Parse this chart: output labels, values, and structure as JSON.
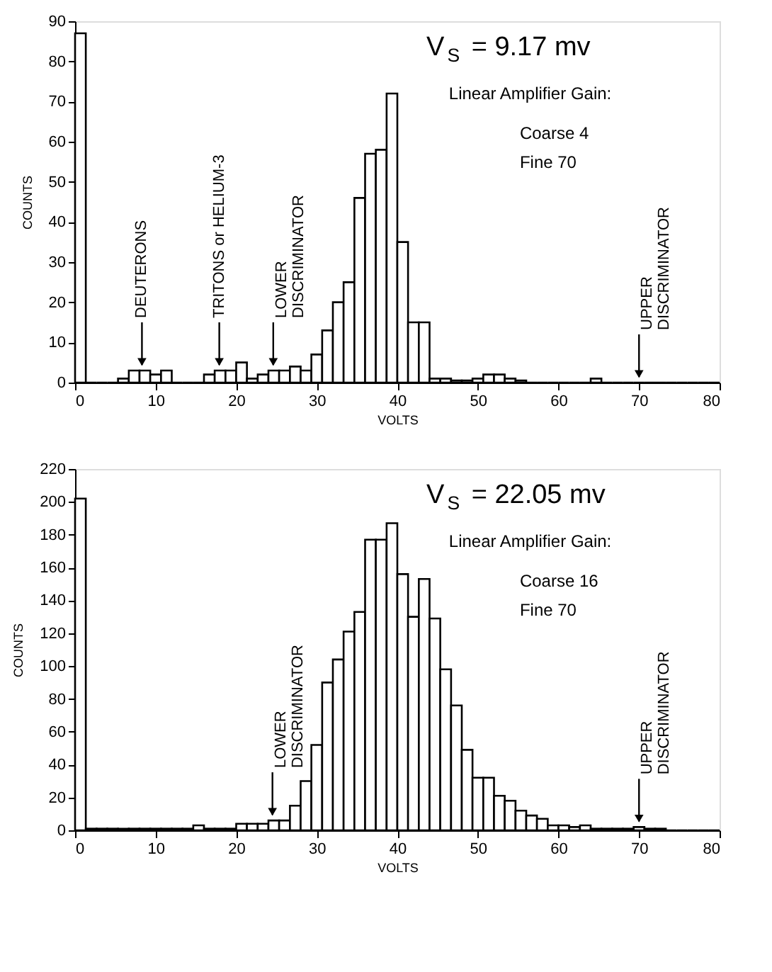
{
  "chart_data": [
    {
      "type": "histogram",
      "color": "#000000",
      "xlabel": "VOLTS",
      "ylabel": "COUNTS",
      "bins": [
        0,
        1.33,
        2.67,
        4,
        5.33,
        6.67,
        8,
        9.33,
        10.67,
        12,
        13.33,
        14.67,
        16,
        17.33,
        18.67,
        20,
        21.33,
        22.67,
        24,
        25.33,
        26.67,
        28,
        29.33,
        30.67,
        32,
        33.33,
        34.67,
        36,
        37.33,
        38.67,
        40,
        41.33,
        42.67,
        44,
        45.33,
        46.67,
        48,
        49.33,
        50.67,
        52,
        53.33,
        54.67,
        56,
        57.33,
        58.67,
        60,
        61.33,
        62.67,
        64,
        65.33,
        66.67,
        68,
        69.33,
        70.67,
        72,
        73.33,
        74.67,
        76,
        77.33,
        78.67,
        80
      ],
      "values": [
        87,
        0,
        0,
        0,
        1,
        3,
        3,
        2,
        3,
        0,
        0,
        0,
        2,
        3,
        3,
        5,
        1,
        2,
        3,
        3,
        4,
        3,
        7,
        13,
        20,
        25,
        46,
        57,
        58,
        72,
        35,
        15,
        15,
        1,
        1,
        0.5,
        0.5,
        1,
        2,
        2,
        1,
        0.5,
        0,
        0,
        0,
        0,
        0,
        0,
        1,
        0,
        0,
        0,
        0,
        0,
        0,
        0,
        0,
        0,
        0,
        0
      ],
      "xlim": [
        0,
        80
      ],
      "xticks": [
        0,
        10,
        20,
        30,
        40,
        50,
        60,
        70,
        80
      ],
      "ylim": [
        0,
        90
      ],
      "yticks": [
        0,
        10,
        20,
        30,
        40,
        50,
        60,
        70,
        80,
        90
      ],
      "annotations": [
        {
          "text": "DEUTERONS",
          "x": 8.3,
          "y": 3
        },
        {
          "text": "TRITONS or HELIUM-3",
          "x": 17.9,
          "y": 3
        },
        {
          "text": "LOWER\nDISCRIMINATOR",
          "x": 24.6,
          "y": 3
        },
        {
          "text": "UPPER\nDISCRIMINATOR",
          "x": 70,
          "y": 0
        },
        "V$_{S}$ = 9.17 mv",
        "Linear Amplifier Gain:",
        "Coarse   4",
        "Fine      70"
      ]
    },
    {
      "type": "histogram",
      "color": "#000000",
      "xlabel": "VOLTS",
      "ylabel": "COUNTS",
      "bins": [
        0,
        1.33,
        2.67,
        4,
        5.33,
        6.67,
        8,
        9.33,
        10.67,
        12,
        13.33,
        14.67,
        16,
        17.33,
        18.67,
        20,
        21.33,
        22.67,
        24,
        25.33,
        26.67,
        28,
        29.33,
        30.67,
        32,
        33.33,
        34.67,
        36,
        37.33,
        38.67,
        40,
        41.33,
        42.67,
        44,
        45.33,
        46.67,
        48,
        49.33,
        50.67,
        52,
        53.33,
        54.67,
        56,
        57.33,
        58.67,
        60,
        61.33,
        62.67,
        64,
        65.33,
        66.67,
        68,
        69.33,
        70.67,
        72,
        73.33,
        74.67,
        76,
        77.33,
        78.67,
        80
      ],
      "values": [
        202,
        1,
        1,
        1,
        1,
        1,
        1,
        1,
        1,
        1,
        1,
        3,
        1,
        1,
        1,
        4,
        4,
        4,
        6,
        6,
        15,
        30,
        52,
        90,
        104,
        121,
        133,
        177,
        177,
        187,
        156,
        130,
        153,
        129,
        98,
        76,
        49,
        32,
        32,
        21,
        18,
        12,
        9,
        7,
        3,
        3,
        2,
        3,
        1,
        1,
        1,
        1,
        2,
        1,
        1,
        0,
        0,
        0,
        0,
        0
      ],
      "xlim": [
        0,
        80
      ],
      "xticks": [
        0,
        10,
        20,
        30,
        40,
        50,
        60,
        70,
        80
      ],
      "ylim": [
        0,
        220
      ],
      "yticks": [
        0,
        20,
        40,
        60,
        80,
        100,
        120,
        140,
        160,
        180,
        200,
        220
      ],
      "annotations": [
        {
          "text": "LOWER\nDISCRIMINATOR",
          "x": 24.5,
          "y": 6
        },
        {
          "text": "UPPER\nDISCRIMINATOR",
          "x": 70,
          "y": 2
        },
        "V$_{S}$ = 22.05 mv",
        "Linear Amplifier Gain:",
        "Coarse 16",
        "Fine      70"
      ]
    }
  ]
}
